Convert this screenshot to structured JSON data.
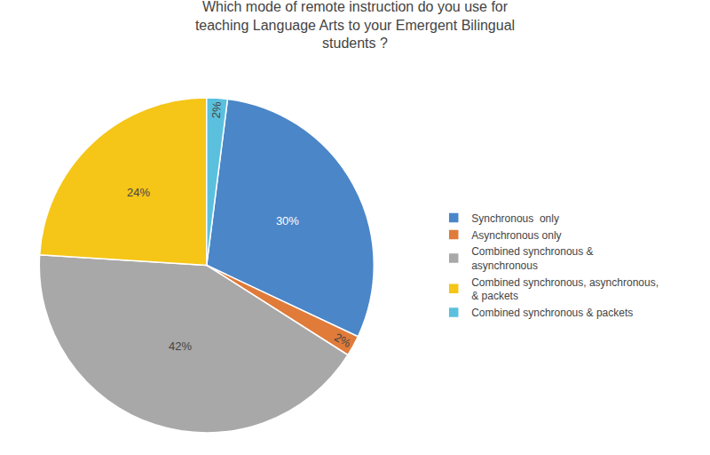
{
  "chart_data": {
    "type": "pie",
    "title": "Which mode of remote instruction do you use for\nteaching Language Arts to your Emergent Bilingual\nstudents ?",
    "categories": [
      "Synchronous  only",
      "Asynchronous only",
      "Combined synchronous &\nasynchronous",
      "Combined synchronous, asynchronous,\n& packets",
      "Combined synchronous & packets"
    ],
    "values": [
      30,
      2,
      42,
      24,
      2
    ],
    "value_labels": [
      "30%",
      "2%",
      "42%",
      "24%",
      "2%"
    ],
    "colors": [
      "#4a86c8",
      "#e07b3a",
      "#a8a8a8",
      "#f5c518",
      "#5bc0de"
    ],
    "data_labels": true,
    "legend": "right"
  }
}
